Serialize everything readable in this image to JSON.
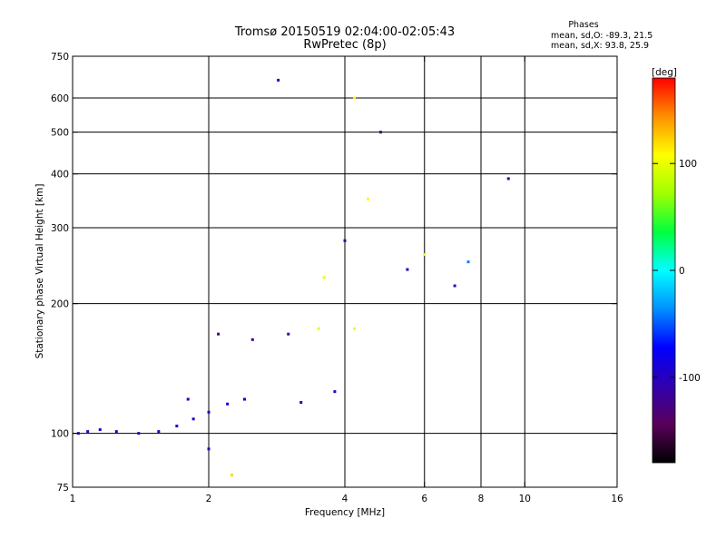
{
  "chart_data": {
    "type": "scatter",
    "title": "Tromsø 20150519 02:04:00-02:05:43",
    "subtitle": "RwPretec (8p)",
    "xlabel": "Frequency [MHz]",
    "ylabel": "Stationary phase Virtual Height [km]",
    "x_scale": "log",
    "y_scale": "log",
    "xlim": [
      1,
      16
    ],
    "ylim": [
      75,
      750
    ],
    "grid": true,
    "x_ticks": [
      {
        "value": 1,
        "label": "1"
      },
      {
        "value": 2,
        "label": "2"
      },
      {
        "value": 4,
        "label": "4"
      },
      {
        "value": 6,
        "label": "6"
      },
      {
        "value": 8,
        "label": "8"
      },
      {
        "value": 10,
        "label": "10"
      },
      {
        "value": 16,
        "label": "16"
      }
    ],
    "x_gridlines": [
      2,
      4,
      6,
      8,
      10
    ],
    "y_ticks": [
      {
        "value": 75,
        "label": "75"
      },
      {
        "value": 100,
        "label": "100"
      },
      {
        "value": 200,
        "label": "200"
      },
      {
        "value": 300,
        "label": "300"
      },
      {
        "value": 400,
        "label": "400"
      },
      {
        "value": 500,
        "label": "500"
      },
      {
        "value": 600,
        "label": "600"
      },
      {
        "value": 750,
        "label": "750"
      }
    ],
    "y_gridlines": [
      100,
      200,
      300,
      400,
      500,
      600
    ],
    "legend": {
      "title": "Phases",
      "lines": [
        "mean, sd,O: -89.3, 21.5",
        "mean, sd,X:  93.8, 25.9"
      ]
    },
    "colorbar": {
      "label": "[deg]",
      "range": [
        -180,
        180
      ],
      "ticks": [
        {
          "value": 100,
          "label": "100"
        },
        {
          "value": 0,
          "label": "0"
        },
        {
          "value": -100,
          "label": "-100"
        }
      ],
      "colormap": [
        "#000000",
        "#5a005a",
        "#3000b0",
        "#0000ff",
        "#0090ff",
        "#00ffff",
        "#00ff40",
        "#a0ff00",
        "#ffff00",
        "#ff9000",
        "#ff0000"
      ]
    },
    "series": [
      {
        "values": [
          {
            "f": 1.03,
            "h": 100,
            "phase": -110
          },
          {
            "f": 1.08,
            "h": 101,
            "phase": -105
          },
          {
            "f": 1.15,
            "h": 102,
            "phase": -100
          },
          {
            "f": 1.25,
            "h": 101,
            "phase": -100
          },
          {
            "f": 1.4,
            "h": 100,
            "phase": -105
          },
          {
            "f": 1.55,
            "h": 101,
            "phase": -100
          },
          {
            "f": 1.7,
            "h": 104,
            "phase": -95
          },
          {
            "f": 1.85,
            "h": 108,
            "phase": -90
          },
          {
            "f": 2.0,
            "h": 112,
            "phase": -90
          },
          {
            "f": 2.2,
            "h": 117,
            "phase": -85
          },
          {
            "f": 1.8,
            "h": 120,
            "phase": -80
          },
          {
            "f": 2.4,
            "h": 120,
            "phase": -80
          },
          {
            "f": 2.1,
            "h": 170,
            "phase": -130
          },
          {
            "f": 2.5,
            "h": 165,
            "phase": -120
          },
          {
            "f": 3.0,
            "h": 170,
            "phase": -120
          },
          {
            "f": 3.5,
            "h": 175,
            "phase": 100
          },
          {
            "f": 4.2,
            "h": 175,
            "phase": 110
          },
          {
            "f": 3.2,
            "h": 118,
            "phase": -110
          },
          {
            "f": 3.8,
            "h": 125,
            "phase": -100
          },
          {
            "f": 3.6,
            "h": 230,
            "phase": 100
          },
          {
            "f": 4.0,
            "h": 280,
            "phase": -120
          },
          {
            "f": 4.5,
            "h": 350,
            "phase": 110
          },
          {
            "f": 5.5,
            "h": 240,
            "phase": -110
          },
          {
            "f": 6.0,
            "h": 260,
            "phase": 100
          },
          {
            "f": 7.0,
            "h": 220,
            "phase": -100
          },
          {
            "f": 7.5,
            "h": 250,
            "phase": -40
          },
          {
            "f": 4.8,
            "h": 500,
            "phase": -120
          },
          {
            "f": 4.2,
            "h": 600,
            "phase": 110
          },
          {
            "f": 2.85,
            "h": 660,
            "phase": -90
          },
          {
            "f": 9.2,
            "h": 390,
            "phase": -110
          },
          {
            "f": 2.0,
            "h": 92,
            "phase": -100
          },
          {
            "f": 2.25,
            "h": 80,
            "phase": 120
          }
        ]
      }
    ]
  }
}
